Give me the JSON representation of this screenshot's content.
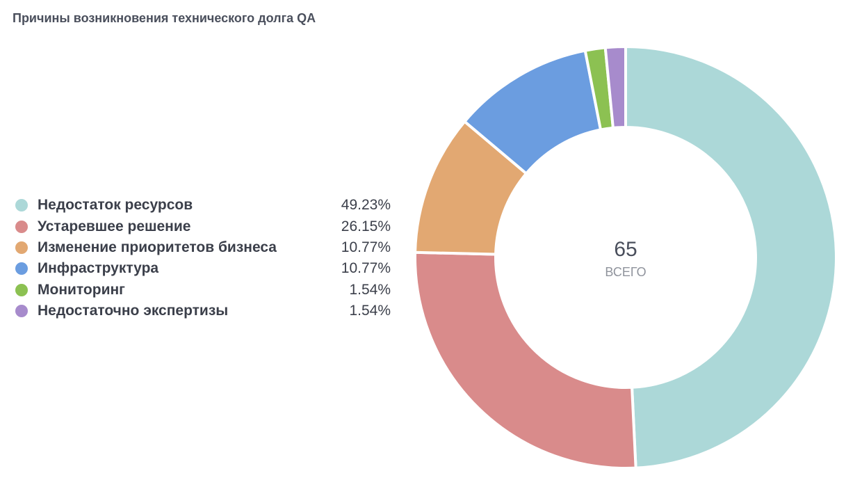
{
  "chart_data": {
    "type": "pie",
    "title": "Причины возникновения технического долга QA",
    "legend_position": "left",
    "total": "65",
    "total_label": "ВСЕГО",
    "categories": [
      "Недостаток ресурсов",
      "Устаревшее решение",
      "Изменение приоритетов бизнеса",
      "Инфраструктура",
      "Мониторинг",
      "Недостаточно экспертизы"
    ],
    "values": [
      49.23,
      26.15,
      10.77,
      10.77,
      1.54,
      1.54
    ],
    "value_labels": [
      "49.23%",
      "26.15%",
      "10.77%",
      "10.77%",
      "1.54%",
      "1.54%"
    ],
    "colors": [
      "#acd8d8",
      "#d98b8b",
      "#e2a872",
      "#6b9de0",
      "#8cc152",
      "#a78bcc"
    ]
  }
}
